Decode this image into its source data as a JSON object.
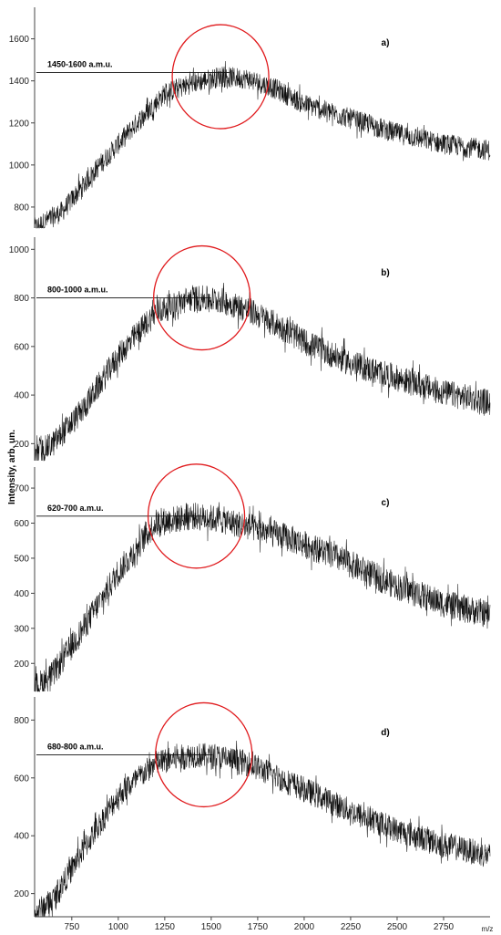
{
  "colors": {
    "trace": "#111111",
    "axis": "#444444",
    "circle": "#e0191c",
    "ref_line": "#111111"
  },
  "figure": {
    "ylabel": "Intensity, arb. un.",
    "x_unit": "m/z"
  },
  "chart_data": [
    {
      "type": "line",
      "panel": "a)",
      "annotation": "1450-1600 a.m.u.",
      "reference_y": 1440,
      "ylim": [
        700,
        1750
      ],
      "y_ticks": [
        800,
        1000,
        1200,
        1400,
        1600
      ],
      "xlim": [
        550,
        3000
      ],
      "circle_center": {
        "x": 1550,
        "y": 1420
      },
      "profile": {
        "x": [
          550,
          700,
          900,
          1100,
          1250,
          1400,
          1550,
          1700,
          1850,
          2000,
          2250,
          2500,
          2750,
          3000
        ],
        "y": [
          700,
          780,
          1000,
          1200,
          1340,
          1390,
          1420,
          1410,
          1360,
          1290,
          1220,
          1150,
          1100,
          1070
        ]
      },
      "noise": 50,
      "series": [
        {
          "values": "see profile"
        }
      ]
    },
    {
      "type": "line",
      "panel": "b)",
      "annotation": "800-1000 a.m.u.",
      "reference_y": 800,
      "ylim": [
        130,
        1050
      ],
      "y_ticks": [
        200,
        400,
        600,
        800,
        1000
      ],
      "xlim": [
        550,
        3000
      ],
      "circle_center": {
        "x": 1450,
        "y": 800
      },
      "profile": {
        "x": [
          550,
          650,
          800,
          1000,
          1200,
          1400,
          1550,
          1700,
          1850,
          2000,
          2250,
          2500,
          2750,
          3000
        ],
        "y": [
          150,
          200,
          330,
          560,
          740,
          800,
          790,
          750,
          690,
          620,
          530,
          470,
          410,
          370
        ]
      },
      "noise": 55,
      "series": [
        {
          "values": "see profile"
        }
      ]
    },
    {
      "type": "line",
      "panel": "c)",
      "annotation": "620-700 a.m.u.",
      "reference_y": 620,
      "ylim": [
        120,
        760
      ],
      "y_ticks": [
        200,
        300,
        400,
        500,
        600,
        700
      ],
      "xlim": [
        550,
        3000
      ],
      "circle_center": {
        "x": 1420,
        "y": 620
      },
      "profile": {
        "x": [
          550,
          650,
          800,
          1000,
          1200,
          1400,
          1550,
          1700,
          1900,
          2100,
          2300,
          2500,
          2750,
          3000
        ],
        "y": [
          130,
          170,
          290,
          460,
          600,
          620,
          610,
          590,
          560,
          520,
          470,
          420,
          370,
          340
        ]
      },
      "noise": 40,
      "series": [
        {
          "values": "see profile"
        }
      ]
    },
    {
      "type": "line",
      "panel": "d)",
      "annotation": "680-800 a.m.u.",
      "reference_y": 680,
      "ylim": [
        120,
        880
      ],
      "y_ticks": [
        200,
        400,
        600,
        800
      ],
      "xlim": [
        550,
        3000
      ],
      "x_ticks": [
        750,
        1000,
        1250,
        1500,
        1750,
        2000,
        2250,
        2500,
        2750
      ],
      "circle_center": {
        "x": 1460,
        "y": 680
      },
      "profile": {
        "x": [
          550,
          650,
          800,
          1000,
          1200,
          1400,
          1550,
          1700,
          1900,
          2100,
          2300,
          2500,
          2750,
          3000
        ],
        "y": [
          130,
          180,
          340,
          540,
          650,
          680,
          670,
          650,
          590,
          530,
          470,
          420,
          370,
          330
        ]
      },
      "noise": 45,
      "series": [
        {
          "values": "see profile"
        }
      ]
    }
  ]
}
